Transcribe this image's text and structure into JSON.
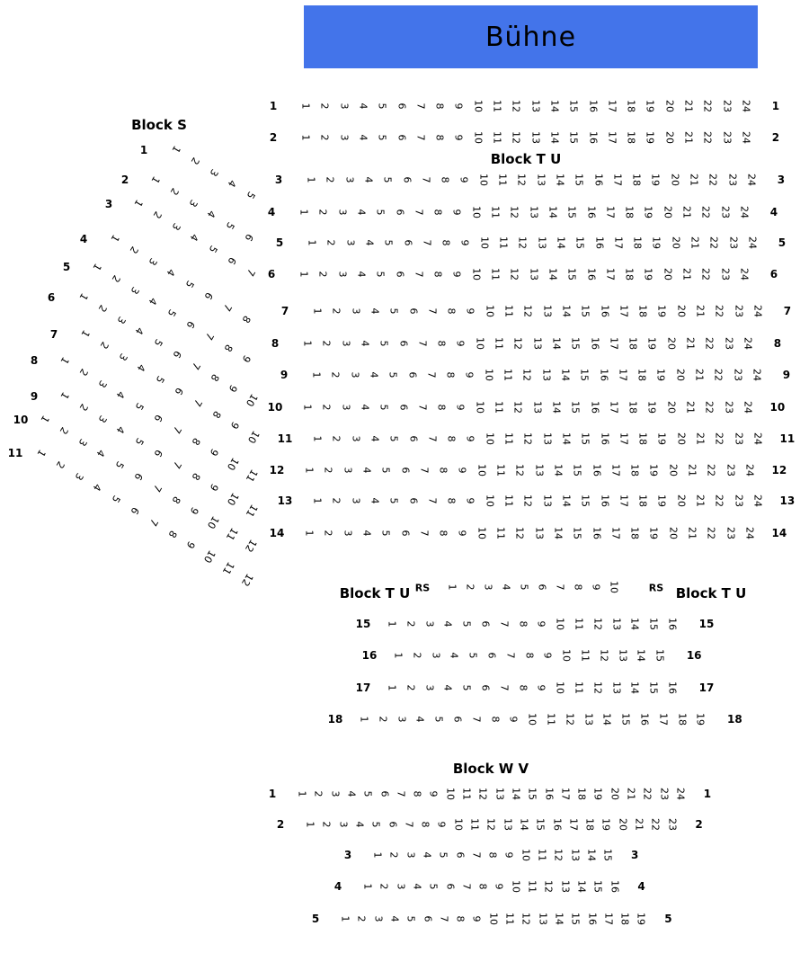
{
  "stage": {
    "label": "Bühne",
    "background": "#4374EA"
  },
  "block_s": {
    "title": "Block S",
    "rows": [
      {
        "label": "1",
        "seats": 5
      },
      {
        "label": "2",
        "seats": 6
      },
      {
        "label": "3",
        "seats": 7
      },
      {
        "label": "4",
        "seats": 8
      },
      {
        "label": "5",
        "seats": 9
      },
      {
        "label": "6",
        "seats": 10
      },
      {
        "label": "7",
        "seats": 10
      },
      {
        "label": "8",
        "seats": 11
      },
      {
        "label": "9",
        "seats": 11
      },
      {
        "label": "10",
        "seats": 12
      },
      {
        "label": "11",
        "seats": 12
      }
    ]
  },
  "block_tu": {
    "title": "Block T U",
    "rows": [
      {
        "label": "1",
        "seats": 24
      },
      {
        "label": "2",
        "seats": 24
      },
      {
        "label": "3",
        "seats": 24
      },
      {
        "label": "4",
        "seats": 24
      },
      {
        "label": "5",
        "seats": 24
      },
      {
        "label": "6",
        "seats": 24
      },
      {
        "label": "7",
        "seats": 24
      },
      {
        "label": "8",
        "seats": 24
      },
      {
        "label": "9",
        "seats": 24
      },
      {
        "label": "10",
        "seats": 24
      },
      {
        "label": "11",
        "seats": 24
      },
      {
        "label": "12",
        "seats": 24
      },
      {
        "label": "13",
        "seats": 24
      },
      {
        "label": "14",
        "seats": 24
      }
    ]
  },
  "block_tu_lower": {
    "left_title": "Block T U",
    "right_title": "Block T U",
    "rs_left": "RS",
    "rs_right": "RS",
    "rs_seats": 10,
    "rows": [
      {
        "label": "15",
        "seats": 16
      },
      {
        "label": "16",
        "seats": 15
      },
      {
        "label": "17",
        "seats": 16
      },
      {
        "label": "18",
        "seats": 19
      }
    ]
  },
  "block_wv": {
    "title": "Block W V",
    "rows": [
      {
        "label": "1",
        "seats": 24
      },
      {
        "label": "2",
        "seats": 23
      },
      {
        "label": "3",
        "seats": 15
      },
      {
        "label": "4",
        "seats": 16
      },
      {
        "label": "5",
        "seats": 19
      }
    ]
  }
}
